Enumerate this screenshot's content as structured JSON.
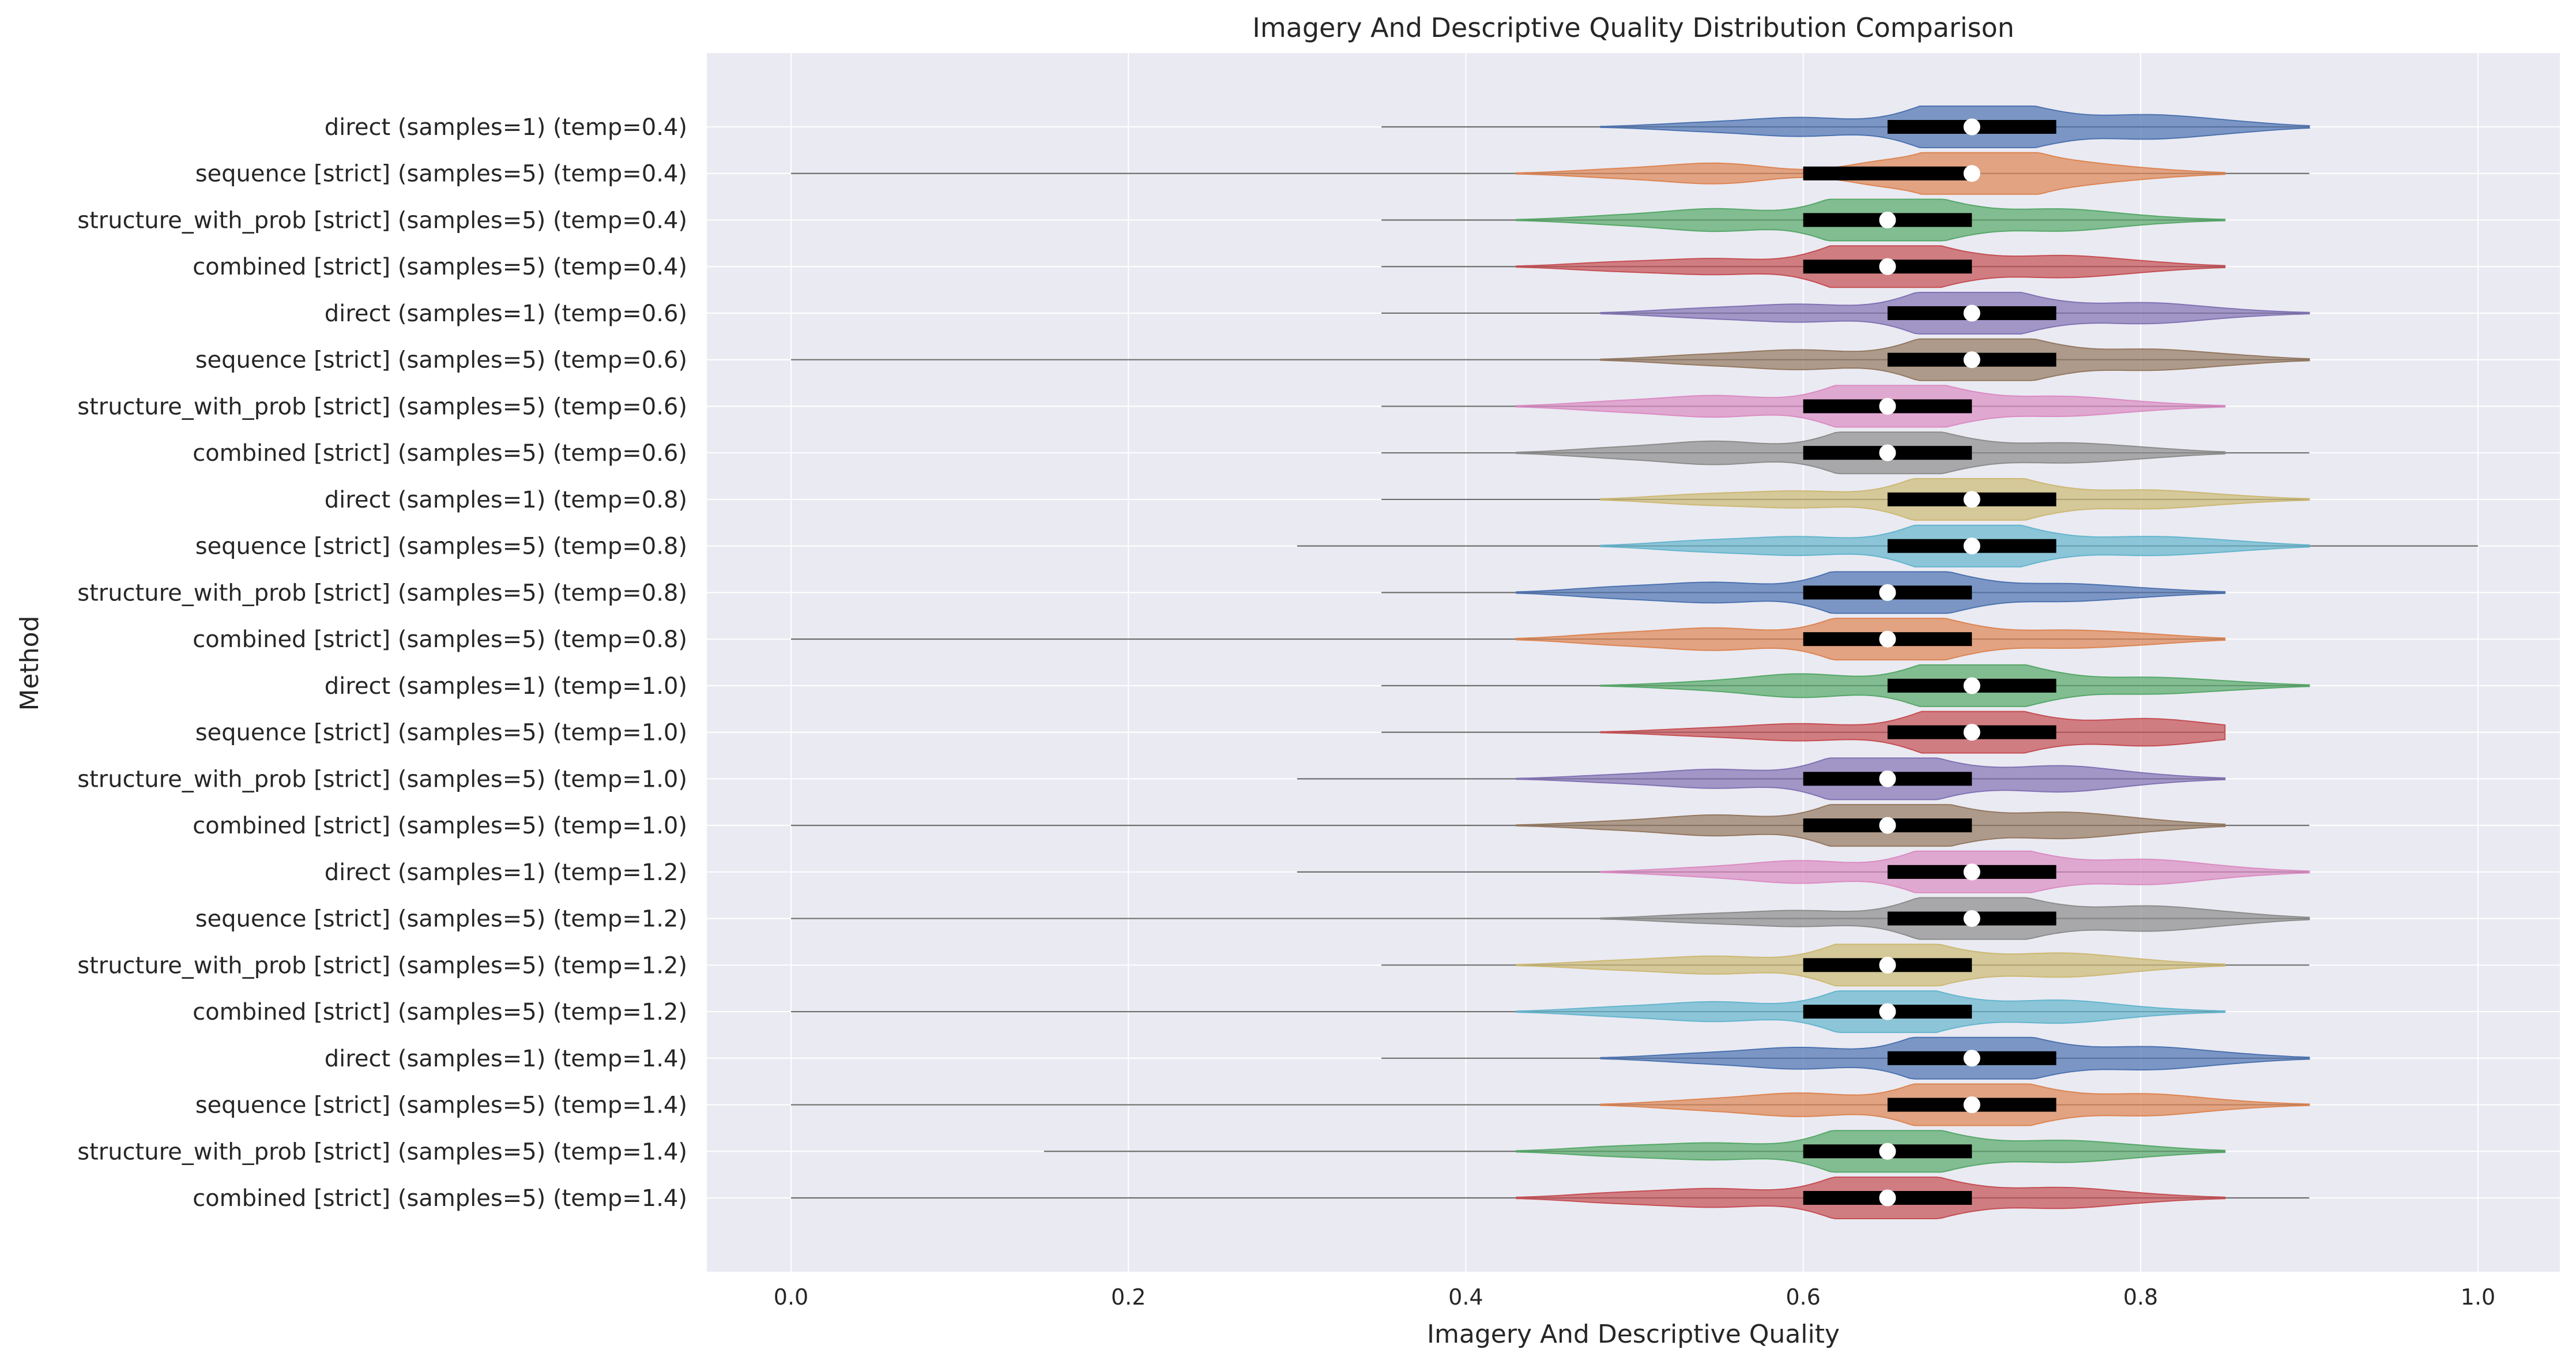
{
  "chart_data": {
    "type": "violin",
    "title": "Imagery And Descriptive Quality Distribution Comparison",
    "xlabel": "Imagery And Descriptive Quality",
    "ylabel": "Method",
    "xlim": [
      -0.05,
      1.05
    ],
    "xticks": [
      "0.0",
      "0.2",
      "0.4",
      "0.6",
      "0.8",
      "1.0"
    ],
    "grid": true,
    "orientation": "horizontal",
    "palette": [
      "#4c72b0",
      "#dd8452",
      "#55a868",
      "#c44e52",
      "#8172b3",
      "#937860",
      "#da8bc3",
      "#8c8c8c",
      "#ccb974",
      "#64b5cd"
    ],
    "background": "#eaeaf2",
    "series": [
      {
        "name": "direct (samples=1) (temp=0.4)",
        "min": 0.35,
        "q1": 0.65,
        "median": 0.7,
        "q3": 0.75,
        "max": 0.9
      },
      {
        "name": "sequence [strict] (samples=5) (temp=0.4)",
        "min": 0.0,
        "q1": 0.6,
        "median": 0.7,
        "q3": 0.7,
        "max": 0.9
      },
      {
        "name": "structure_with_prob [strict] (samples=5) (temp=0.4)",
        "min": 0.35,
        "q1": 0.6,
        "median": 0.65,
        "q3": 0.7,
        "max": 0.85
      },
      {
        "name": "combined [strict] (samples=5) (temp=0.4)",
        "min": 0.35,
        "q1": 0.6,
        "median": 0.65,
        "q3": 0.7,
        "max": 0.85
      },
      {
        "name": "direct (samples=1) (temp=0.6)",
        "min": 0.35,
        "q1": 0.65,
        "median": 0.7,
        "q3": 0.75,
        "max": 0.9
      },
      {
        "name": "sequence [strict] (samples=5) (temp=0.6)",
        "min": 0.0,
        "q1": 0.65,
        "median": 0.7,
        "q3": 0.75,
        "max": 0.9
      },
      {
        "name": "structure_with_prob [strict] (samples=5) (temp=0.6)",
        "min": 0.35,
        "q1": 0.6,
        "median": 0.65,
        "q3": 0.7,
        "max": 0.85
      },
      {
        "name": "combined [strict] (samples=5) (temp=0.6)",
        "min": 0.35,
        "q1": 0.6,
        "median": 0.65,
        "q3": 0.7,
        "max": 0.9
      },
      {
        "name": "direct (samples=1) (temp=0.8)",
        "min": 0.35,
        "q1": 0.65,
        "median": 0.7,
        "q3": 0.75,
        "max": 0.9
      },
      {
        "name": "sequence [strict] (samples=5) (temp=0.8)",
        "min": 0.3,
        "q1": 0.65,
        "median": 0.7,
        "q3": 0.75,
        "max": 1.0
      },
      {
        "name": "structure_with_prob [strict] (samples=5) (temp=0.8)",
        "min": 0.35,
        "q1": 0.6,
        "median": 0.65,
        "q3": 0.7,
        "max": 0.85
      },
      {
        "name": "combined [strict] (samples=5) (temp=0.8)",
        "min": 0.0,
        "q1": 0.6,
        "median": 0.65,
        "q3": 0.7,
        "max": 0.85
      },
      {
        "name": "direct (samples=1) (temp=1.0)",
        "min": 0.35,
        "q1": 0.65,
        "median": 0.7,
        "q3": 0.75,
        "max": 0.9
      },
      {
        "name": "sequence [strict] (samples=5) (temp=1.0)",
        "min": 0.35,
        "q1": 0.65,
        "median": 0.7,
        "q3": 0.75,
        "max": 0.85
      },
      {
        "name": "structure_with_prob [strict] (samples=5) (temp=1.0)",
        "min": 0.3,
        "q1": 0.6,
        "median": 0.65,
        "q3": 0.7,
        "max": 0.85
      },
      {
        "name": "combined [strict] (samples=5) (temp=1.0)",
        "min": 0.0,
        "q1": 0.6,
        "median": 0.65,
        "q3": 0.7,
        "max": 0.9
      },
      {
        "name": "direct (samples=1) (temp=1.2)",
        "min": 0.3,
        "q1": 0.65,
        "median": 0.7,
        "q3": 0.75,
        "max": 0.9
      },
      {
        "name": "sequence [strict] (samples=5) (temp=1.2)",
        "min": 0.0,
        "q1": 0.65,
        "median": 0.7,
        "q3": 0.75,
        "max": 0.9
      },
      {
        "name": "structure_with_prob [strict] (samples=5) (temp=1.2)",
        "min": 0.35,
        "q1": 0.6,
        "median": 0.65,
        "q3": 0.7,
        "max": 0.9
      },
      {
        "name": "combined [strict] (samples=5) (temp=1.2)",
        "min": 0.0,
        "q1": 0.6,
        "median": 0.65,
        "q3": 0.7,
        "max": 0.85
      },
      {
        "name": "direct (samples=1) (temp=1.4)",
        "min": 0.35,
        "q1": 0.65,
        "median": 0.7,
        "q3": 0.75,
        "max": 0.9
      },
      {
        "name": "sequence [strict] (samples=5) (temp=1.4)",
        "min": 0.0,
        "q1": 0.65,
        "median": 0.7,
        "q3": 0.75,
        "max": 0.9
      },
      {
        "name": "structure_with_prob [strict] (samples=5) (temp=1.4)",
        "min": 0.15,
        "q1": 0.6,
        "median": 0.65,
        "q3": 0.7,
        "max": 0.85
      },
      {
        "name": "combined [strict] (samples=5) (temp=1.4)",
        "min": 0.0,
        "q1": 0.6,
        "median": 0.65,
        "q3": 0.7,
        "max": 0.9
      }
    ]
  }
}
